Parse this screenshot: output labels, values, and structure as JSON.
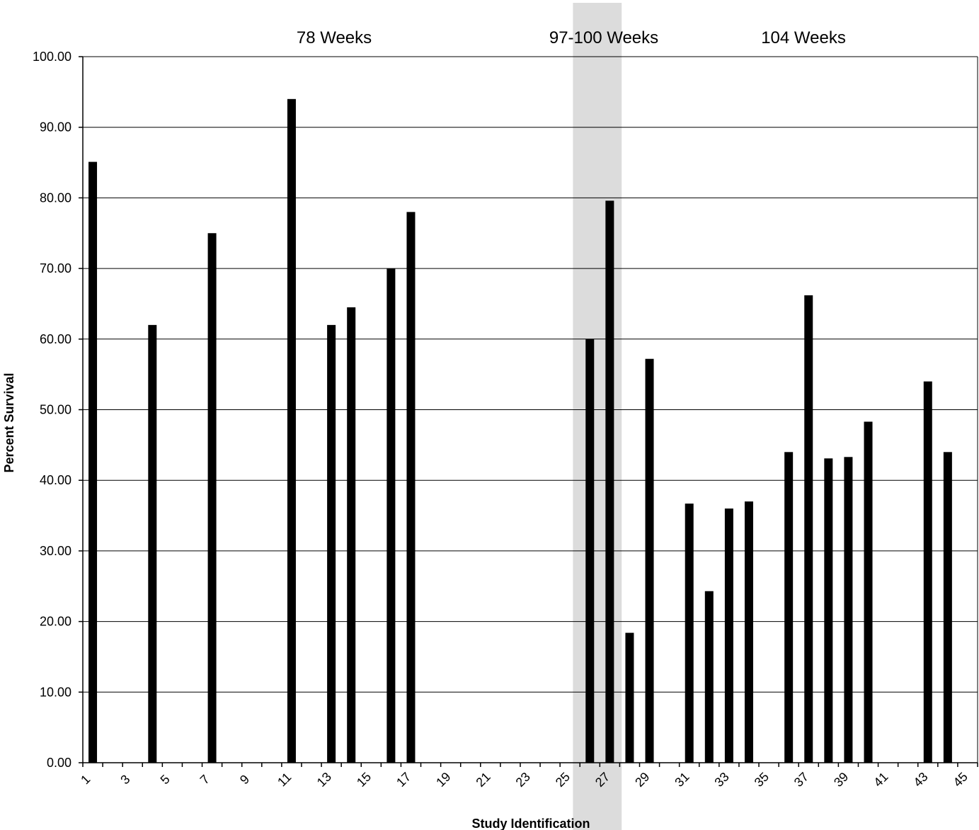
{
  "chart_data": {
    "type": "bar",
    "title": "",
    "xlabel": "Study Identification",
    "ylabel": "Percent Survival",
    "ylim": [
      0,
      100
    ],
    "yticks": [
      "0.00",
      "10.00",
      "20.00",
      "30.00",
      "40.00",
      "50.00",
      "60.00",
      "70.00",
      "80.00",
      "90.00",
      "100.00"
    ],
    "xtick_labels": [
      "1",
      "3",
      "5",
      "7",
      "9",
      "11",
      "13",
      "15",
      "17",
      "19",
      "21",
      "23",
      "25",
      "27",
      "29",
      "31",
      "33",
      "35",
      "37",
      "39",
      "41",
      "43",
      "45"
    ],
    "grid": "horizontal",
    "categories": [
      1,
      2,
      3,
      4,
      5,
      6,
      7,
      8,
      9,
      10,
      11,
      12,
      13,
      14,
      15,
      16,
      17,
      18,
      19,
      20,
      21,
      22,
      23,
      24,
      25,
      26,
      27,
      28,
      29,
      30,
      31,
      32,
      33,
      34,
      35,
      36,
      37,
      38,
      39,
      40,
      41,
      42,
      43,
      44,
      45
    ],
    "values": [
      85.1,
      null,
      null,
      62.0,
      null,
      null,
      75.0,
      null,
      null,
      null,
      94.0,
      null,
      62.0,
      64.5,
      null,
      70.0,
      78.0,
      null,
      null,
      null,
      null,
      null,
      null,
      null,
      null,
      60.0,
      79.6,
      18.4,
      57.2,
      null,
      36.7,
      24.3,
      36.0,
      37.0,
      null,
      44.0,
      66.2,
      43.1,
      43.3,
      48.3,
      null,
      null,
      54.0,
      44.0,
      null
    ],
    "bar_color": "#000000",
    "highlight_band": {
      "from_study": 26,
      "to_study": 27,
      "color": "#dcdcdc"
    },
    "group_labels": [
      "78 Weeks",
      "97-100 Weeks",
      "104 Weeks"
    ]
  }
}
